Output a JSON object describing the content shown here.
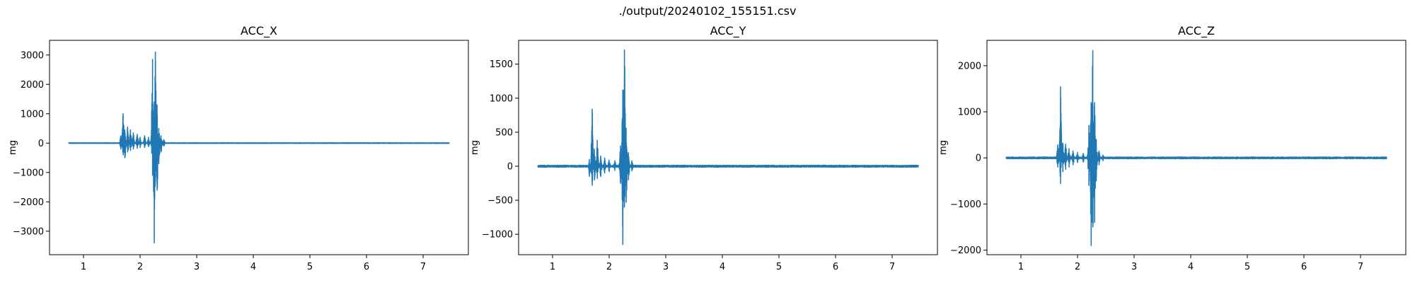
{
  "figure": {
    "suptitle": "./output/20240102_155151.csv"
  },
  "style": {
    "line_color": "#1f77b4",
    "axis_color": "#000000",
    "background": "#ffffff"
  },
  "chart_data": [
    {
      "type": "line",
      "title": "ACC_X",
      "xlabel": "",
      "ylabel": "mg",
      "xlim": [
        0.4,
        7.8
      ],
      "ylim": [
        -3800,
        3500
      ],
      "xticks": [
        1,
        2,
        3,
        4,
        5,
        6,
        7
      ],
      "yticks": [
        -3000,
        -2000,
        -1000,
        0,
        1000,
        2000,
        3000
      ],
      "grid": false,
      "legend": "none",
      "x_range": [
        0.74,
        7.46
      ],
      "noise_level": 12,
      "events": [
        {
          "x": 1.66,
          "max": 250,
          "min": -200
        },
        {
          "x": 1.7,
          "max": 1000,
          "min": -400
        },
        {
          "x": 1.73,
          "max": 450,
          "min": -500
        },
        {
          "x": 1.78,
          "max": 550,
          "min": -300
        },
        {
          "x": 1.83,
          "max": 450,
          "min": -250
        },
        {
          "x": 1.88,
          "max": 350,
          "min": -200
        },
        {
          "x": 1.95,
          "max": 300,
          "min": -180
        },
        {
          "x": 2.0,
          "max": 200,
          "min": -150
        },
        {
          "x": 2.08,
          "max": 250,
          "min": -150
        },
        {
          "x": 2.15,
          "max": 200,
          "min": -120
        },
        {
          "x": 2.22,
          "max": 2850,
          "min": -1100
        },
        {
          "x": 2.25,
          "max": 1400,
          "min": -3400
        },
        {
          "x": 2.27,
          "max": 3100,
          "min": -1300
        },
        {
          "x": 2.3,
          "max": 1300,
          "min": -1600
        },
        {
          "x": 2.33,
          "max": 500,
          "min": -700
        },
        {
          "x": 2.37,
          "max": 250,
          "min": -300
        },
        {
          "x": 2.42,
          "max": 120,
          "min": -100
        }
      ]
    },
    {
      "type": "line",
      "title": "ACC_Y",
      "xlabel": "",
      "ylabel": "mg",
      "xlim": [
        0.4,
        7.8
      ],
      "ylim": [
        -1300,
        1850
      ],
      "xticks": [
        1,
        2,
        3,
        4,
        5,
        6,
        7
      ],
      "yticks": [
        -1000,
        -500,
        0,
        500,
        1000,
        1500
      ],
      "grid": false,
      "legend": "none",
      "x_range": [
        0.74,
        7.46
      ],
      "noise_level": 15,
      "events": [
        {
          "x": 1.65,
          "max": 100,
          "min": -150
        },
        {
          "x": 1.7,
          "max": 840,
          "min": -280
        },
        {
          "x": 1.74,
          "max": 250,
          "min": -200
        },
        {
          "x": 1.79,
          "max": 380,
          "min": -180
        },
        {
          "x": 1.85,
          "max": 150,
          "min": -150
        },
        {
          "x": 1.92,
          "max": 120,
          "min": -100
        },
        {
          "x": 2.0,
          "max": 90,
          "min": -80
        },
        {
          "x": 2.1,
          "max": 80,
          "min": -60
        },
        {
          "x": 2.2,
          "max": 300,
          "min": -250
        },
        {
          "x": 2.24,
          "max": 1120,
          "min": -1150
        },
        {
          "x": 2.27,
          "max": 1710,
          "min": -600
        },
        {
          "x": 2.3,
          "max": 560,
          "min": -530
        },
        {
          "x": 2.34,
          "max": 200,
          "min": -200
        },
        {
          "x": 2.4,
          "max": 80,
          "min": -70
        }
      ]
    },
    {
      "type": "line",
      "title": "ACC_Z",
      "xlabel": "",
      "ylabel": "mg",
      "xlim": [
        0.4,
        7.8
      ],
      "ylim": [
        -2100,
        2550
      ],
      "xticks": [
        1,
        2,
        3,
        4,
        5,
        6,
        7
      ],
      "yticks": [
        -2000,
        -1000,
        0,
        1000,
        2000
      ],
      "grid": false,
      "legend": "none",
      "x_range": [
        0.74,
        7.46
      ],
      "noise_level": 20,
      "events": [
        {
          "x": 1.65,
          "max": 280,
          "min": -200
        },
        {
          "x": 1.7,
          "max": 1540,
          "min": -560
        },
        {
          "x": 1.74,
          "max": 320,
          "min": -300
        },
        {
          "x": 1.79,
          "max": 300,
          "min": -250
        },
        {
          "x": 1.85,
          "max": 200,
          "min": -200
        },
        {
          "x": 1.92,
          "max": 150,
          "min": -150
        },
        {
          "x": 2.0,
          "max": 120,
          "min": -100
        },
        {
          "x": 2.1,
          "max": 100,
          "min": -90
        },
        {
          "x": 2.2,
          "max": 700,
          "min": -600
        },
        {
          "x": 2.24,
          "max": 1200,
          "min": -1900
        },
        {
          "x": 2.27,
          "max": 2330,
          "min": -1500
        },
        {
          "x": 2.3,
          "max": 1200,
          "min": -1400
        },
        {
          "x": 2.33,
          "max": 400,
          "min": -500
        },
        {
          "x": 2.38,
          "max": 150,
          "min": -150
        },
        {
          "x": 2.45,
          "max": 60,
          "min": -60
        }
      ]
    }
  ]
}
